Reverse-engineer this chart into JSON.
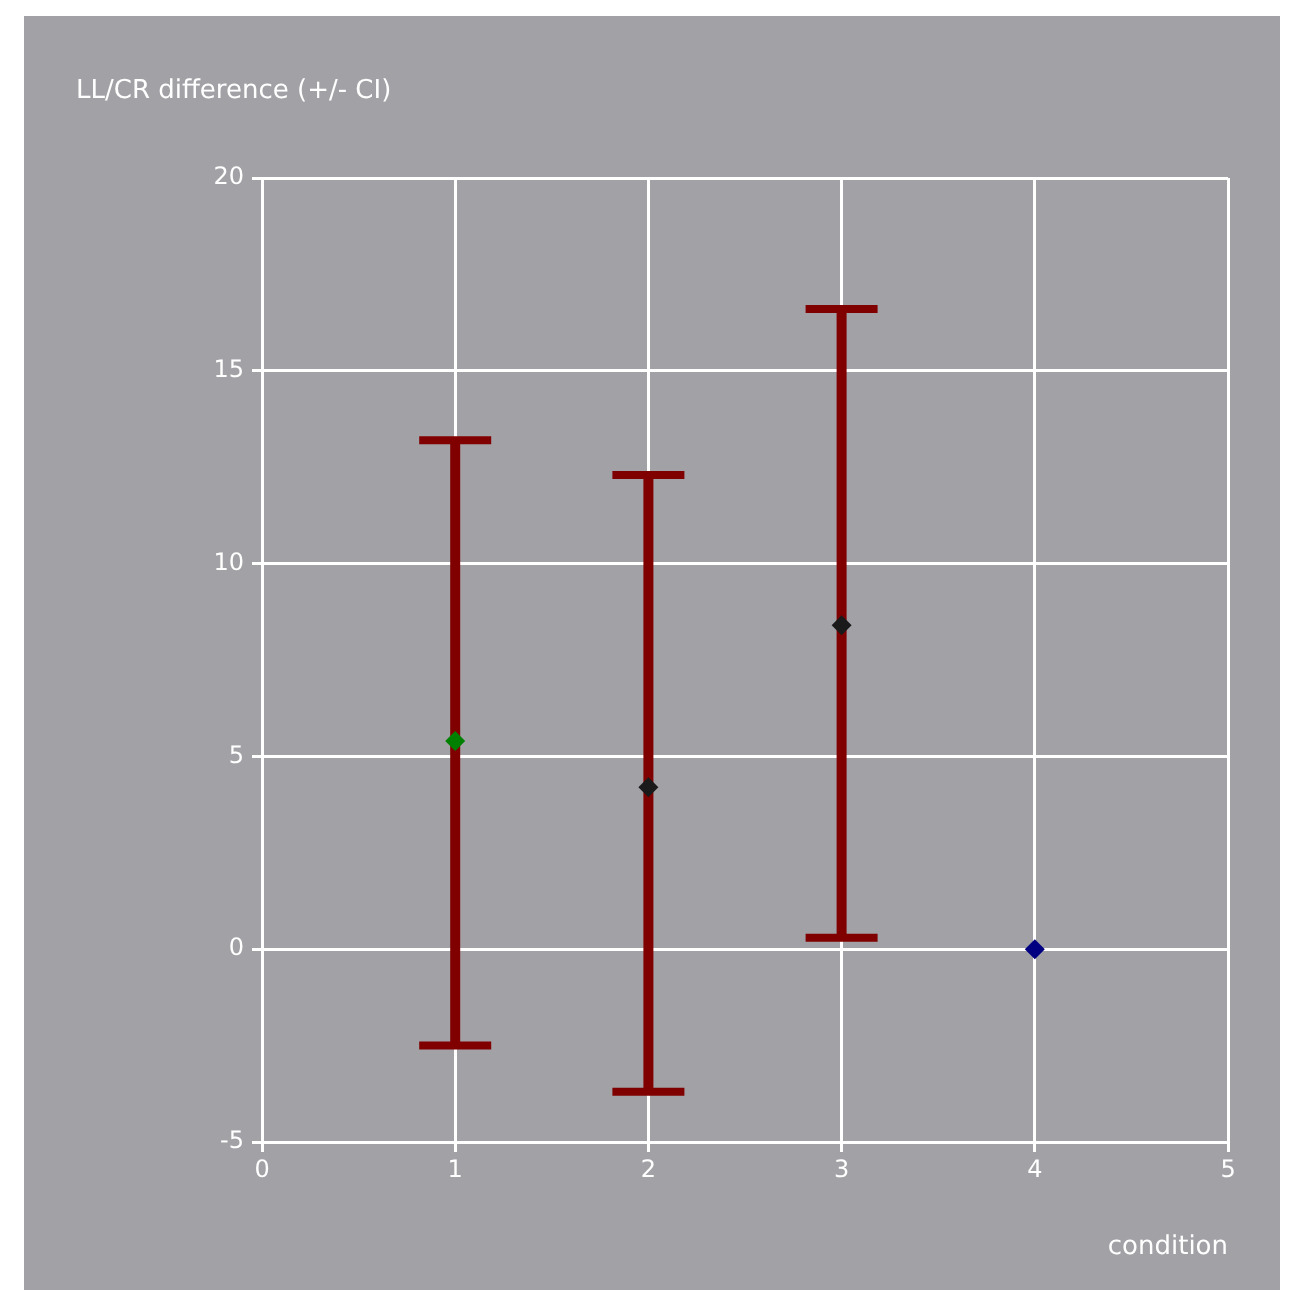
{
  "chart_data": {
    "type": "scatter",
    "ylabel": "LL/CR difference (+/- CI)",
    "xlabel": "condition",
    "x": [
      1,
      2,
      3,
      4
    ],
    "values": [
      5.4,
      4.2,
      8.4,
      0
    ],
    "colors": [
      "#008000",
      "#1a1a1a",
      "#1a1a1a",
      "#000080"
    ],
    "errors": [
      [
        -2.5,
        13.2
      ],
      [
        -3.7,
        12.3
      ],
      [
        0.3,
        16.6
      ],
      null
    ],
    "xlim": [
      0,
      5
    ],
    "xticks": [
      0,
      1,
      2,
      3,
      4,
      5
    ],
    "ylim": [
      -5,
      20
    ],
    "yticks": [
      -5,
      0,
      5,
      10,
      15,
      20
    ],
    "grid": true,
    "marker": "diamond",
    "legend": false
  }
}
